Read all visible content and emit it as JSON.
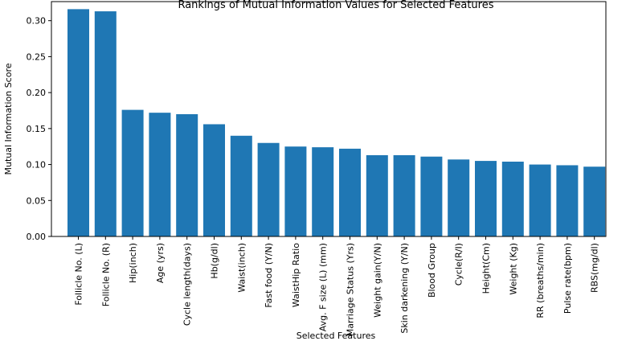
{
  "chart_data": {
    "type": "bar",
    "title": "Rankings of Mutual Information Values for Selected Features",
    "xlabel": "Selected Features",
    "ylabel": "Mutual Information Score",
    "categories": [
      "Follicle No. (L)",
      "Follicle No. (R)",
      "Hip(inch)",
      "Age (yrs)",
      "Cycle length(days)",
      "Hb(g/dl)",
      "Waist(inch)",
      "Fast food (Y/N)",
      "WaistHip Ratio",
      "Avg. F size (L) (mm)",
      "Marriage Status (Yrs)",
      "Weight gain(Y/N)",
      "Skin darkening (Y/N)",
      "Blood Group",
      "Cycle(R/I)",
      "Height(Cm)",
      "Weight (Kg)",
      "RR (breaths/min)",
      "Pulse rate(bpm)",
      "RBS(mg/dl)"
    ],
    "values": [
      0.316,
      0.313,
      0.176,
      0.172,
      0.17,
      0.156,
      0.14,
      0.13,
      0.125,
      0.124,
      0.122,
      0.113,
      0.113,
      0.111,
      0.107,
      0.105,
      0.104,
      0.1,
      0.099,
      0.097
    ],
    "yticks": [
      "0.00",
      "0.05",
      "0.10",
      "0.15",
      "0.20",
      "0.25",
      "0.30"
    ],
    "ylim": [
      0,
      0.3265
    ],
    "grid": false,
    "bar_color": "#1f77b4"
  }
}
